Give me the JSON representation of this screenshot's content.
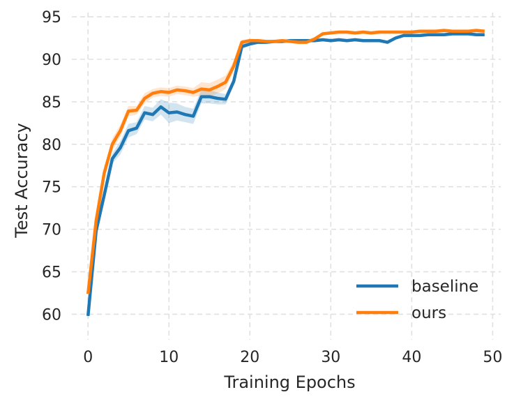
{
  "chart_data": {
    "type": "line",
    "xlabel": "Training Epochs",
    "ylabel": "Test Accuracy",
    "xlim": [
      -2,
      51
    ],
    "ylim": [
      57,
      95.5
    ],
    "xticks": [
      0,
      10,
      20,
      30,
      40,
      50
    ],
    "yticks": [
      60,
      65,
      70,
      75,
      80,
      85,
      90,
      95
    ],
    "grid": true,
    "legend_position": "lower-right",
    "x": [
      0,
      1,
      2,
      3,
      4,
      5,
      6,
      7,
      8,
      9,
      10,
      11,
      12,
      13,
      14,
      15,
      16,
      17,
      18,
      19,
      20,
      21,
      22,
      23,
      24,
      25,
      26,
      27,
      28,
      29,
      30,
      31,
      32,
      33,
      34,
      35,
      36,
      37,
      38,
      39,
      40,
      41,
      42,
      43,
      44,
      45,
      46,
      47,
      48,
      49
    ],
    "series": [
      {
        "name": "baseline",
        "color": "#1f77b4",
        "values": [
          59.8,
          69.8,
          74.0,
          78.3,
          79.6,
          81.6,
          81.9,
          83.7,
          83.5,
          84.4,
          83.7,
          83.8,
          83.5,
          83.3,
          85.6,
          85.6,
          85.4,
          85.3,
          87.4,
          91.5,
          91.8,
          92.0,
          92.0,
          92.1,
          92.1,
          92.2,
          92.2,
          92.2,
          92.2,
          92.3,
          92.2,
          92.3,
          92.2,
          92.3,
          92.2,
          92.2,
          92.2,
          92.0,
          92.5,
          92.8,
          92.8,
          92.8,
          92.9,
          92.9,
          92.9,
          93.0,
          93.0,
          93.0,
          92.9,
          92.9
        ],
        "band": [
          0.4,
          0.8,
          0.8,
          0.6,
          0.8,
          0.8,
          0.7,
          0.8,
          0.8,
          0.9,
          1.2,
          1.0,
          0.9,
          0.9,
          0.8,
          0.8,
          0.7,
          0.6,
          0.5,
          0.3,
          0.2,
          0.2,
          0.2,
          0.2,
          0.2,
          0.2,
          0.2,
          0.2,
          0.2,
          0.2,
          0.2,
          0.2,
          0.2,
          0.2,
          0.2,
          0.2,
          0.2,
          0.2,
          0.2,
          0.2,
          0.2,
          0.2,
          0.2,
          0.2,
          0.2,
          0.2,
          0.2,
          0.2,
          0.2,
          0.2
        ]
      },
      {
        "name": "ours",
        "color": "#ff7f0e",
        "values": [
          62.4,
          71.0,
          76.6,
          80.0,
          81.6,
          83.9,
          84.0,
          85.4,
          86.0,
          86.2,
          86.1,
          86.4,
          86.3,
          86.1,
          86.5,
          86.4,
          86.8,
          87.3,
          89.2,
          92.0,
          92.2,
          92.2,
          92.1,
          92.1,
          92.2,
          92.1,
          92.0,
          92.0,
          92.4,
          93.0,
          93.1,
          93.2,
          93.2,
          93.1,
          93.2,
          93.1,
          93.2,
          93.2,
          93.2,
          93.2,
          93.2,
          93.3,
          93.3,
          93.3,
          93.4,
          93.3,
          93.3,
          93.3,
          93.4,
          93.3
        ],
        "band": [
          0.4,
          0.6,
          0.8,
          0.7,
          0.7,
          0.6,
          0.5,
          0.6,
          0.5,
          0.5,
          0.5,
          0.5,
          0.5,
          0.5,
          0.8,
          0.8,
          0.8,
          0.8,
          0.6,
          0.3,
          0.2,
          0.2,
          0.2,
          0.2,
          0.2,
          0.2,
          0.2,
          0.2,
          0.2,
          0.2,
          0.2,
          0.2,
          0.2,
          0.2,
          0.2,
          0.2,
          0.2,
          0.2,
          0.2,
          0.2,
          0.2,
          0.2,
          0.2,
          0.2,
          0.2,
          0.2,
          0.2,
          0.2,
          0.2,
          0.2
        ]
      }
    ]
  }
}
